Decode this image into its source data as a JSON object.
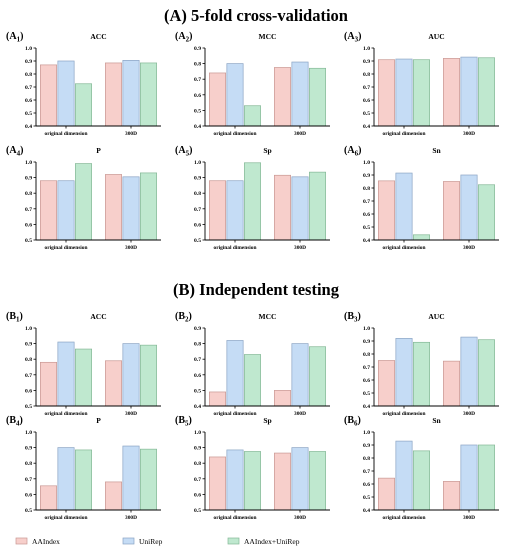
{
  "legend": {
    "entries": [
      {
        "label": "AAIndex",
        "fill": "#f7cfcb",
        "stroke": "#c99893"
      },
      {
        "label": "UniRep",
        "fill": "#c5dcf5",
        "stroke": "#8ba4c4"
      },
      {
        "label": "AAIndex+UniRep",
        "fill": "#bfe8cf",
        "stroke": "#84b896"
      }
    ]
  },
  "chart_data": [
    {
      "section": "(A) 5-fold cross-validation",
      "type": "bar",
      "categories": [
        "original dimension",
        "300D"
      ],
      "panels": [
        {
          "label": "A",
          "sub": "1",
          "title": "ACC",
          "ylim": [
            0.4,
            1.0
          ],
          "ticks": [
            "0.4",
            "0.5",
            "0.6",
            "0.7",
            "0.8",
            "0.9",
            "1.0"
          ],
          "series": [
            {
              "name": "AAIndex",
              "values": [
                0.87,
                0.885
              ]
            },
            {
              "name": "UniRep",
              "values": [
                0.9,
                0.905
              ]
            },
            {
              "name": "AAIndex+UniRep",
              "values": [
                0.725,
                0.885
              ]
            }
          ]
        },
        {
          "label": "A",
          "sub": "2",
          "title": "MCC",
          "ylim": [
            0.4,
            0.9
          ],
          "ticks": [
            "0.4",
            "0.5",
            "0.6",
            "0.7",
            "0.8",
            "0.9"
          ],
          "series": [
            {
              "name": "AAIndex",
              "values": [
                0.74,
                0.775
              ]
            },
            {
              "name": "UniRep",
              "values": [
                0.8,
                0.81
              ]
            },
            {
              "name": "AAIndex+UniRep",
              "values": [
                0.53,
                0.77
              ]
            }
          ]
        },
        {
          "label": "A",
          "sub": "3",
          "title": "AUC",
          "ylim": [
            0.4,
            1.0
          ],
          "ticks": [
            "0.4",
            "0.5",
            "0.6",
            "0.7",
            "0.8",
            "0.9",
            "1.0"
          ],
          "series": [
            {
              "name": "AAIndex",
              "values": [
                0.91,
                0.92
              ]
            },
            {
              "name": "UniRep",
              "values": [
                0.915,
                0.93
              ]
            },
            {
              "name": "AAIndex+UniRep",
              "values": [
                0.91,
                0.925
              ]
            }
          ]
        },
        {
          "label": "A",
          "sub": "4",
          "title": "P",
          "ylim": [
            0.5,
            1.0
          ],
          "ticks": [
            "0.5",
            "0.6",
            "0.7",
            "0.8",
            "0.9",
            "1.0"
          ],
          "series": [
            {
              "name": "AAIndex",
              "values": [
                0.88,
                0.92
              ]
            },
            {
              "name": "UniRep",
              "values": [
                0.88,
                0.905
              ]
            },
            {
              "name": "AAIndex+UniRep",
              "values": [
                0.99,
                0.93
              ]
            }
          ]
        },
        {
          "label": "A",
          "sub": "5",
          "title": "Sp",
          "ylim": [
            0.5,
            1.0
          ],
          "ticks": [
            "0.5",
            "0.6",
            "0.7",
            "0.8",
            "0.9",
            "1.0"
          ],
          "series": [
            {
              "name": "AAIndex",
              "values": [
                0.88,
                0.915
              ]
            },
            {
              "name": "UniRep",
              "values": [
                0.88,
                0.905
              ]
            },
            {
              "name": "AAIndex+UniRep",
              "values": [
                0.995,
                0.935
              ]
            }
          ]
        },
        {
          "label": "A",
          "sub": "6",
          "title": "Sn",
          "ylim": [
            0.4,
            1.0
          ],
          "ticks": [
            "0.4",
            "0.5",
            "0.6",
            "0.7",
            "0.8",
            "0.9",
            "1.0"
          ],
          "series": [
            {
              "name": "AAIndex",
              "values": [
                0.855,
                0.85
              ]
            },
            {
              "name": "UniRep",
              "values": [
                0.915,
                0.9
              ]
            },
            {
              "name": "AAIndex+UniRep",
              "values": [
                0.44,
                0.825
              ]
            }
          ]
        }
      ]
    },
    {
      "section": "(B) Independent testing",
      "type": "bar",
      "categories": [
        "original dimension",
        "300D"
      ],
      "panels": [
        {
          "label": "B",
          "sub": "1",
          "title": "ACC",
          "ylim": [
            0.5,
            1.0
          ],
          "ticks": [
            "0.5",
            "0.6",
            "0.7",
            "0.8",
            "0.9",
            "1.0"
          ],
          "series": [
            {
              "name": "AAIndex",
              "values": [
                0.78,
                0.79
              ]
            },
            {
              "name": "UniRep",
              "values": [
                0.91,
                0.9
              ]
            },
            {
              "name": "AAIndex+UniRep",
              "values": [
                0.865,
                0.89
              ]
            }
          ]
        },
        {
          "label": "B",
          "sub": "2",
          "title": "MCC",
          "ylim": [
            0.4,
            0.9
          ],
          "ticks": [
            "0.4",
            "0.5",
            "0.6",
            "0.7",
            "0.8",
            "0.9"
          ],
          "series": [
            {
              "name": "AAIndex",
              "values": [
                0.49,
                0.5
              ]
            },
            {
              "name": "UniRep",
              "values": [
                0.82,
                0.8
              ]
            },
            {
              "name": "AAIndex+UniRep",
              "values": [
                0.73,
                0.78
              ]
            }
          ]
        },
        {
          "label": "B",
          "sub": "3",
          "title": "AUC",
          "ylim": [
            0.4,
            1.0
          ],
          "ticks": [
            "0.4",
            "0.5",
            "0.6",
            "0.7",
            "0.8",
            "0.9",
            "1.0"
          ],
          "series": [
            {
              "name": "AAIndex",
              "values": [
                0.75,
                0.745
              ]
            },
            {
              "name": "UniRep",
              "values": [
                0.92,
                0.93
              ]
            },
            {
              "name": "AAIndex+UniRep",
              "values": [
                0.89,
                0.91
              ]
            }
          ]
        },
        {
          "label": "B",
          "sub": "4",
          "title": "P",
          "ylim": [
            0.5,
            1.0
          ],
          "ticks": [
            "0.5",
            "0.6",
            "0.7",
            "0.8",
            "0.9",
            "1.0"
          ],
          "series": [
            {
              "name": "AAIndex",
              "values": [
                0.655,
                0.68
              ]
            },
            {
              "name": "UniRep",
              "values": [
                0.9,
                0.91
              ]
            },
            {
              "name": "AAIndex+UniRep",
              "values": [
                0.885,
                0.89
              ]
            }
          ]
        },
        {
          "label": "B",
          "sub": "5",
          "title": "Sp",
          "ylim": [
            0.5,
            1.0
          ],
          "ticks": [
            "0.5",
            "0.6",
            "0.7",
            "0.8",
            "0.9",
            "1.0"
          ],
          "series": [
            {
              "name": "AAIndex",
              "values": [
                0.84,
                0.865
              ]
            },
            {
              "name": "UniRep",
              "values": [
                0.885,
                0.9
              ]
            },
            {
              "name": "AAIndex+UniRep",
              "values": [
                0.875,
                0.875
              ]
            }
          ]
        },
        {
          "label": "B",
          "sub": "6",
          "title": "Sn",
          "ylim": [
            0.4,
            1.0
          ],
          "ticks": [
            "0.4",
            "0.5",
            "0.6",
            "0.7",
            "0.8",
            "0.9",
            "1.0"
          ],
          "series": [
            {
              "name": "AAIndex",
              "values": [
                0.645,
                0.62
              ]
            },
            {
              "name": "UniRep",
              "values": [
                0.93,
                0.9
              ]
            },
            {
              "name": "AAIndex+UniRep",
              "values": [
                0.855,
                0.9
              ]
            }
          ]
        }
      ]
    }
  ]
}
